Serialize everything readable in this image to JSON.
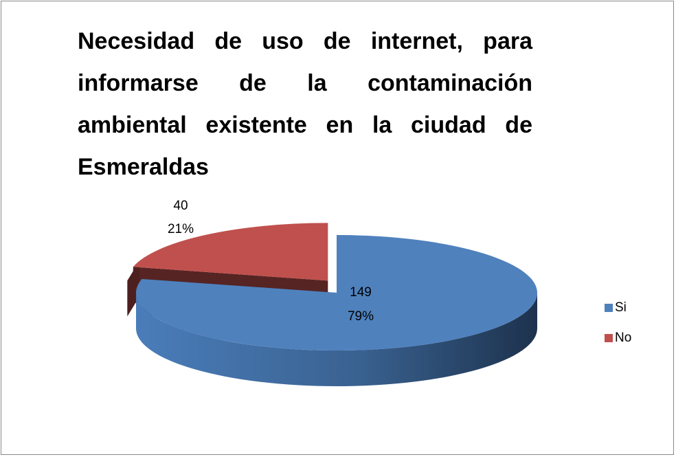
{
  "chart_data": {
    "type": "pie",
    "title": "Necesidad de uso de internet, para informarse de la contaminación ambiental existente en la ciudad de Esmeraldas",
    "categories": [
      "Si",
      "No"
    ],
    "values": [
      149,
      40
    ],
    "percents": [
      79,
      21
    ],
    "percent_labels": [
      "79%",
      "21%"
    ],
    "colors": [
      "#4f81bd",
      "#c0504d"
    ],
    "legend": "right"
  }
}
